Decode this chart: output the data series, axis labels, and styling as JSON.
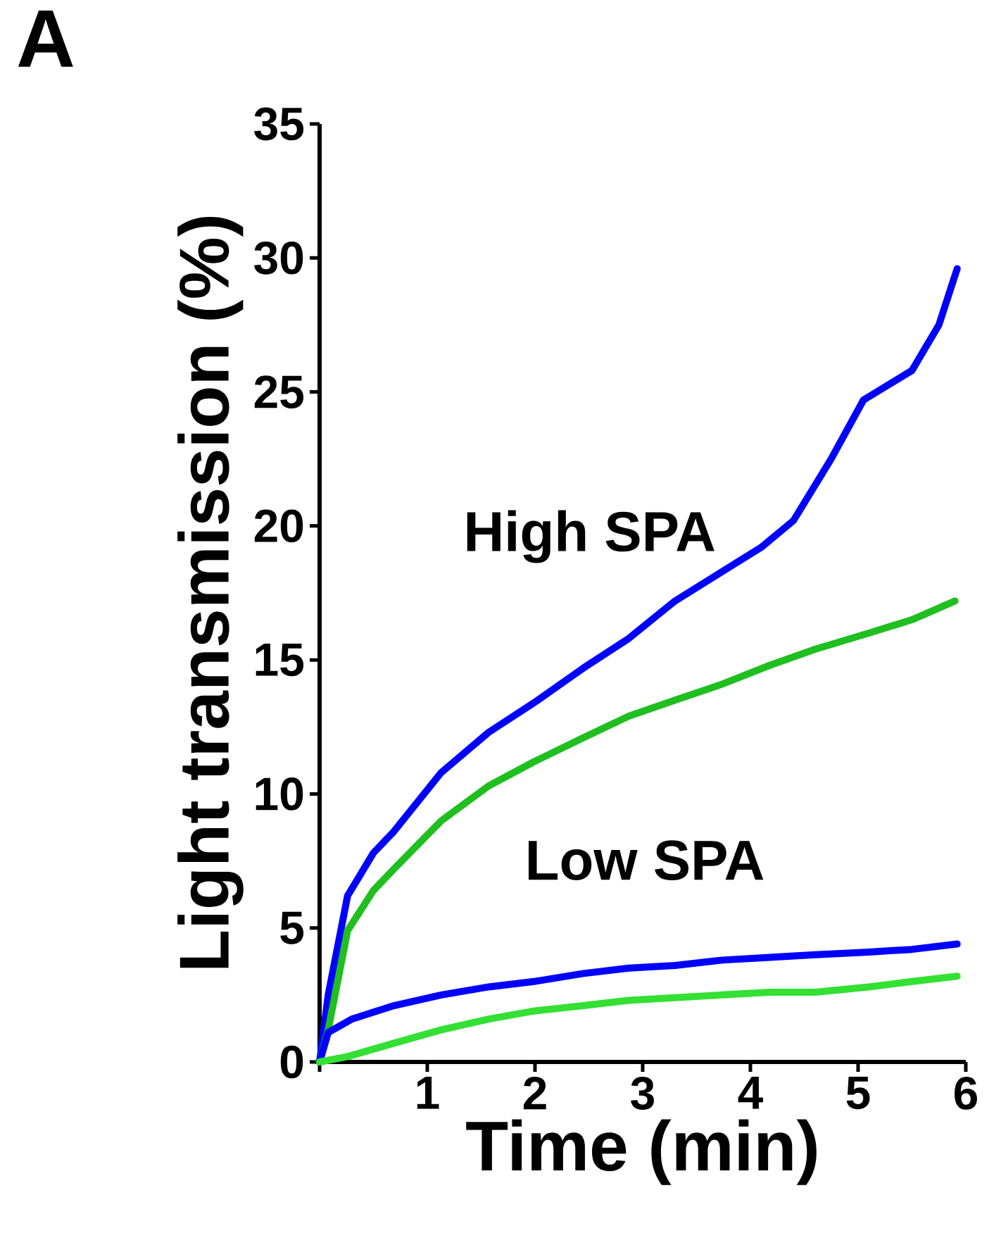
{
  "chart_data": {
    "type": "line",
    "xlabel": "Time (min)",
    "ylabel": "Light transmission (%)",
    "xlim": [
      0,
      6
    ],
    "ylim": [
      0,
      35
    ],
    "xticks": [
      {
        "value": 0,
        "label": null
      },
      1,
      2,
      3,
      4,
      5,
      6
    ],
    "yticks": [
      0,
      5,
      10,
      15,
      20,
      25,
      30,
      35
    ],
    "marker": "none",
    "line_style": "solid",
    "annotations": [
      "A",
      "High SPA",
      "Low SPA"
    ],
    "series": [
      {
        "color": "#0000ff",
        "x": [
          0,
          0.08,
          0.26,
          0.5,
          0.69,
          1.13,
          1.57,
          1.99,
          2.45,
          2.87,
          3.3,
          3.74,
          4.1,
          4.4,
          4.75,
          5.05,
          5.5,
          5.75,
          5.92
        ],
        "values": [
          0,
          2.5,
          6.2,
          7.8,
          8.6,
          10.8,
          12.3,
          13.4,
          14.7,
          15.8,
          17.2,
          18.3,
          19.2,
          20.2,
          22.5,
          24.7,
          25.8,
          27.5,
          29.6
        ]
      },
      {
        "color": "#1fbf1f",
        "x": [
          0,
          0.08,
          0.26,
          0.5,
          0.69,
          1.13,
          1.57,
          1.99,
          2.45,
          2.87,
          3.3,
          3.74,
          4.18,
          4.6,
          5.1,
          5.5,
          5.9
        ],
        "values": [
          0,
          1.2,
          4.9,
          6.4,
          7.2,
          9.0,
          10.3,
          11.2,
          12.1,
          12.9,
          13.5,
          14.1,
          14.8,
          15.4,
          16.0,
          16.5,
          17.2
        ]
      },
      {
        "color": "#0000ff",
        "x": [
          0,
          0.08,
          0.3,
          0.69,
          1.13,
          1.57,
          1.99,
          2.45,
          2.87,
          3.3,
          3.74,
          4.18,
          4.6,
          5.1,
          5.5,
          5.92
        ],
        "values": [
          0,
          1.1,
          1.6,
          2.1,
          2.5,
          2.8,
          3.0,
          3.3,
          3.5,
          3.6,
          3.8,
          3.9,
          4.0,
          4.1,
          4.2,
          4.4
        ]
      },
      {
        "color": "#33e033",
        "x": [
          0,
          0.26,
          0.69,
          1.13,
          1.57,
          1.99,
          2.45,
          2.87,
          3.3,
          3.74,
          4.18,
          4.6,
          5.1,
          5.5,
          5.92
        ],
        "values": [
          0,
          0.2,
          0.7,
          1.2,
          1.6,
          1.9,
          2.1,
          2.3,
          2.4,
          2.5,
          2.6,
          2.6,
          2.8,
          3.0,
          3.2
        ]
      }
    ]
  }
}
